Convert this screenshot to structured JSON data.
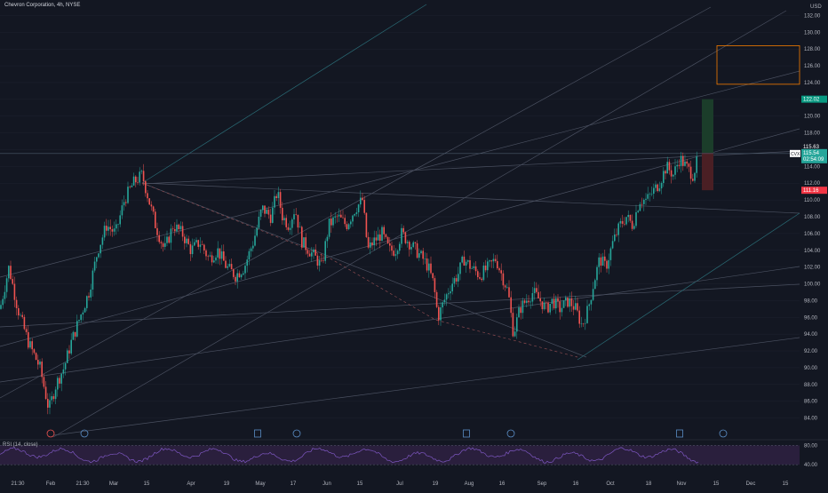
{
  "header": {
    "title": "Chevron Corporation, 4h, NYSE"
  },
  "price_axis": {
    "currency": "USD"
  },
  "rsi_panel": {
    "label": "RSI (14, close)",
    "ticks": [
      "80.00",
      "40.00"
    ]
  },
  "badges": {
    "current_symbol": "CVX",
    "current_price": "115.54",
    "countdown": "02:54:09",
    "last_close_price": "115.63",
    "target_price": "122.02",
    "stop_price": "111.16"
  },
  "colors": {
    "background": "#131722",
    "up": "#26a69a",
    "down": "#ef5350",
    "grid": "#1f2330",
    "rsi_line": "#7e57c2",
    "target_zone": "#1b3d2a",
    "stop_zone": "#4a1f24",
    "box_outline": "#f57c00",
    "trendline": "#4a5060",
    "ray": "#2a6b75"
  },
  "chart_data": {
    "type": "candlestick",
    "title": "Chevron Corporation, 4h, NYSE",
    "y_unit": "USD",
    "ylim": [
      83,
      133
    ],
    "y_ticks": [
      "132.00",
      "130.00",
      "128.00",
      "126.00",
      "124.00",
      "122.00",
      "120.00",
      "118.00",
      "116.00",
      "114.00",
      "112.00",
      "110.00",
      "108.00",
      "106.00",
      "104.00",
      "102.00",
      "100.00",
      "98.00",
      "96.00",
      "94.00",
      "92.00",
      "90.00",
      "88.00",
      "86.00",
      "84.00"
    ],
    "x_ticks": [
      "21:30",
      "Feb",
      "21:30",
      "Mar",
      "15",
      "Apr",
      "19",
      "May",
      "17",
      "Jun",
      "15",
      "Jul",
      "19",
      "Aug",
      "16",
      "Sep",
      "16",
      "Oct",
      "18",
      "Nov",
      "15",
      "Dec",
      "15"
    ],
    "x_tick_positions": [
      20,
      57,
      93,
      128,
      165,
      215,
      255,
      293,
      330,
      368,
      405,
      450,
      490,
      528,
      565,
      610,
      648,
      687,
      730,
      767,
      806,
      845,
      884
    ],
    "price_path": [
      [
        0,
        97
      ],
      [
        10,
        102
      ],
      [
        20,
        97
      ],
      [
        32,
        93
      ],
      [
        45,
        90
      ],
      [
        55,
        85
      ],
      [
        63,
        88
      ],
      [
        72,
        90
      ],
      [
        80,
        93
      ],
      [
        90,
        96
      ],
      [
        100,
        99
      ],
      [
        110,
        104
      ],
      [
        120,
        107
      ],
      [
        130,
        106
      ],
      [
        140,
        110
      ],
      [
        150,
        112
      ],
      [
        160,
        113
      ],
      [
        165,
        111
      ],
      [
        175,
        107
      ],
      [
        185,
        104
      ],
      [
        195,
        107
      ],
      [
        205,
        106
      ],
      [
        215,
        104
      ],
      [
        225,
        105
      ],
      [
        235,
        103
      ],
      [
        245,
        104
      ],
      [
        255,
        102
      ],
      [
        265,
        101
      ],
      [
        275,
        102
      ],
      [
        285,
        105
      ],
      [
        295,
        109
      ],
      [
        305,
        108
      ],
      [
        312,
        111
      ],
      [
        318,
        108
      ],
      [
        325,
        107
      ],
      [
        332,
        109
      ],
      [
        340,
        105
      ],
      [
        348,
        104
      ],
      [
        356,
        103
      ],
      [
        362,
        102
      ],
      [
        370,
        107
      ],
      [
        380,
        108
      ],
      [
        390,
        107
      ],
      [
        400,
        109
      ],
      [
        408,
        110
      ],
      [
        414,
        104
      ],
      [
        420,
        105
      ],
      [
        430,
        106
      ],
      [
        438,
        104
      ],
      [
        445,
        104
      ],
      [
        452,
        106
      ],
      [
        460,
        105
      ],
      [
        468,
        104
      ],
      [
        476,
        103
      ],
      [
        482,
        102
      ],
      [
        488,
        100
      ],
      [
        493,
        96
      ],
      [
        500,
        98
      ],
      [
        508,
        100
      ],
      [
        515,
        101
      ],
      [
        522,
        103
      ],
      [
        530,
        102
      ],
      [
        540,
        101
      ],
      [
        550,
        102
      ],
      [
        558,
        103
      ],
      [
        565,
        101
      ],
      [
        572,
        99
      ],
      [
        578,
        94
      ],
      [
        585,
        97
      ],
      [
        592,
        98
      ],
      [
        600,
        99
      ],
      [
        608,
        98
      ],
      [
        615,
        97
      ],
      [
        622,
        98
      ],
      [
        630,
        97
      ],
      [
        640,
        98
      ],
      [
        648,
        97
      ],
      [
        655,
        95
      ],
      [
        662,
        97
      ],
      [
        668,
        100
      ],
      [
        675,
        103
      ],
      [
        682,
        102
      ],
      [
        690,
        105
      ],
      [
        698,
        107
      ],
      [
        705,
        108
      ],
      [
        712,
        107
      ],
      [
        720,
        110
      ],
      [
        728,
        110
      ],
      [
        735,
        111
      ],
      [
        742,
        112
      ],
      [
        750,
        114
      ],
      [
        758,
        113
      ],
      [
        765,
        115
      ],
      [
        772,
        114
      ],
      [
        780,
        113
      ],
      [
        786,
        115
      ]
    ],
    "rsi": {
      "label": "RSI (14, close)",
      "upper": 80,
      "lower": 40,
      "ylim": [
        20,
        90
      ]
    },
    "annotations": {
      "last_price": 115.54,
      "last_close": 115.63,
      "target": 122.02,
      "stop": 111.16,
      "rect_zone": [
        123.8,
        128.4
      ]
    },
    "event_markers": [
      {
        "x": 57,
        "icon": "dividend-red"
      },
      {
        "x": 95,
        "icon": "dividend"
      },
      {
        "x": 290,
        "icon": "earnings"
      },
      {
        "x": 334,
        "icon": "dividend"
      },
      {
        "x": 525,
        "icon": "earnings"
      },
      {
        "x": 575,
        "icon": "dividend"
      },
      {
        "x": 765,
        "icon": "earnings"
      },
      {
        "x": 814,
        "icon": "dividend"
      }
    ]
  }
}
